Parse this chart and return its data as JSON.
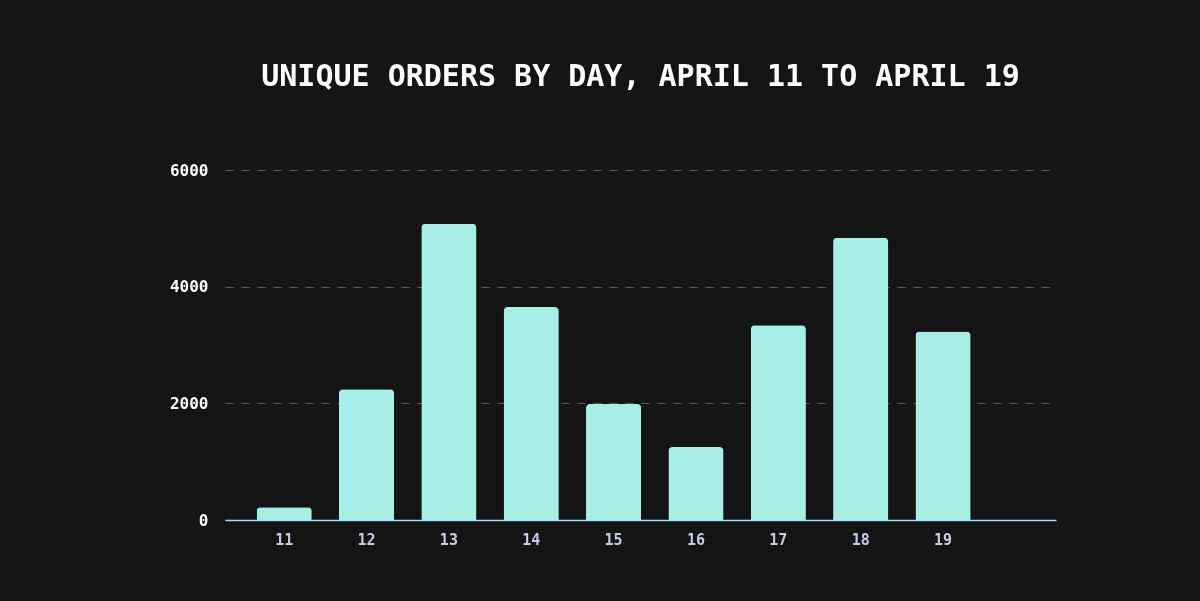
{
  "chart_data": {
    "type": "bar",
    "title": "UNIQUE ORDERS BY DAY, APRIL 11 TO APRIL 19",
    "categories": [
      "11",
      "12",
      "13",
      "14",
      "15",
      "16",
      "17",
      "18",
      "19"
    ],
    "values": [
      220,
      2240,
      5080,
      3650,
      1990,
      1250,
      3340,
      4840,
      3230
    ],
    "color": "#a6eee6",
    "ylim": [
      0,
      6000
    ],
    "yticks": [
      0,
      2000,
      4000,
      6000
    ],
    "grid": "y"
  }
}
